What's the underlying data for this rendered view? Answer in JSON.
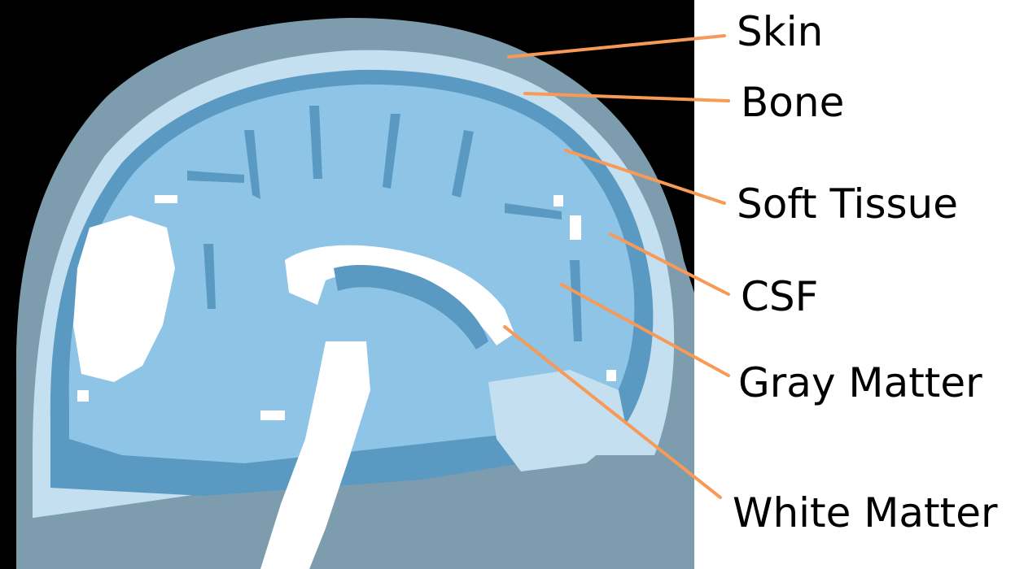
{
  "colors": {
    "background": "#000000",
    "skin": "#7d9dae",
    "bone": "#c4dff0",
    "soft_tissue": "#6d99b1",
    "csf": "#5a99c1",
    "gray_matter": "#8ec4e6",
    "white_matter": "#ffffff",
    "leader_line": "#f79a57"
  },
  "labels": [
    {
      "id": "skin",
      "text": "Skin",
      "color_key": "skin"
    },
    {
      "id": "bone",
      "text": "Bone",
      "color_key": "bone"
    },
    {
      "id": "soft-tissue",
      "text": "Soft Tissue",
      "color_key": "soft_tissue"
    },
    {
      "id": "csf",
      "text": "CSF",
      "color_key": "csf"
    },
    {
      "id": "gray-matter",
      "text": "Gray Matter",
      "color_key": "gray_matter"
    },
    {
      "id": "white-matter",
      "text": "White Matter",
      "color_key": "white_matter"
    }
  ]
}
